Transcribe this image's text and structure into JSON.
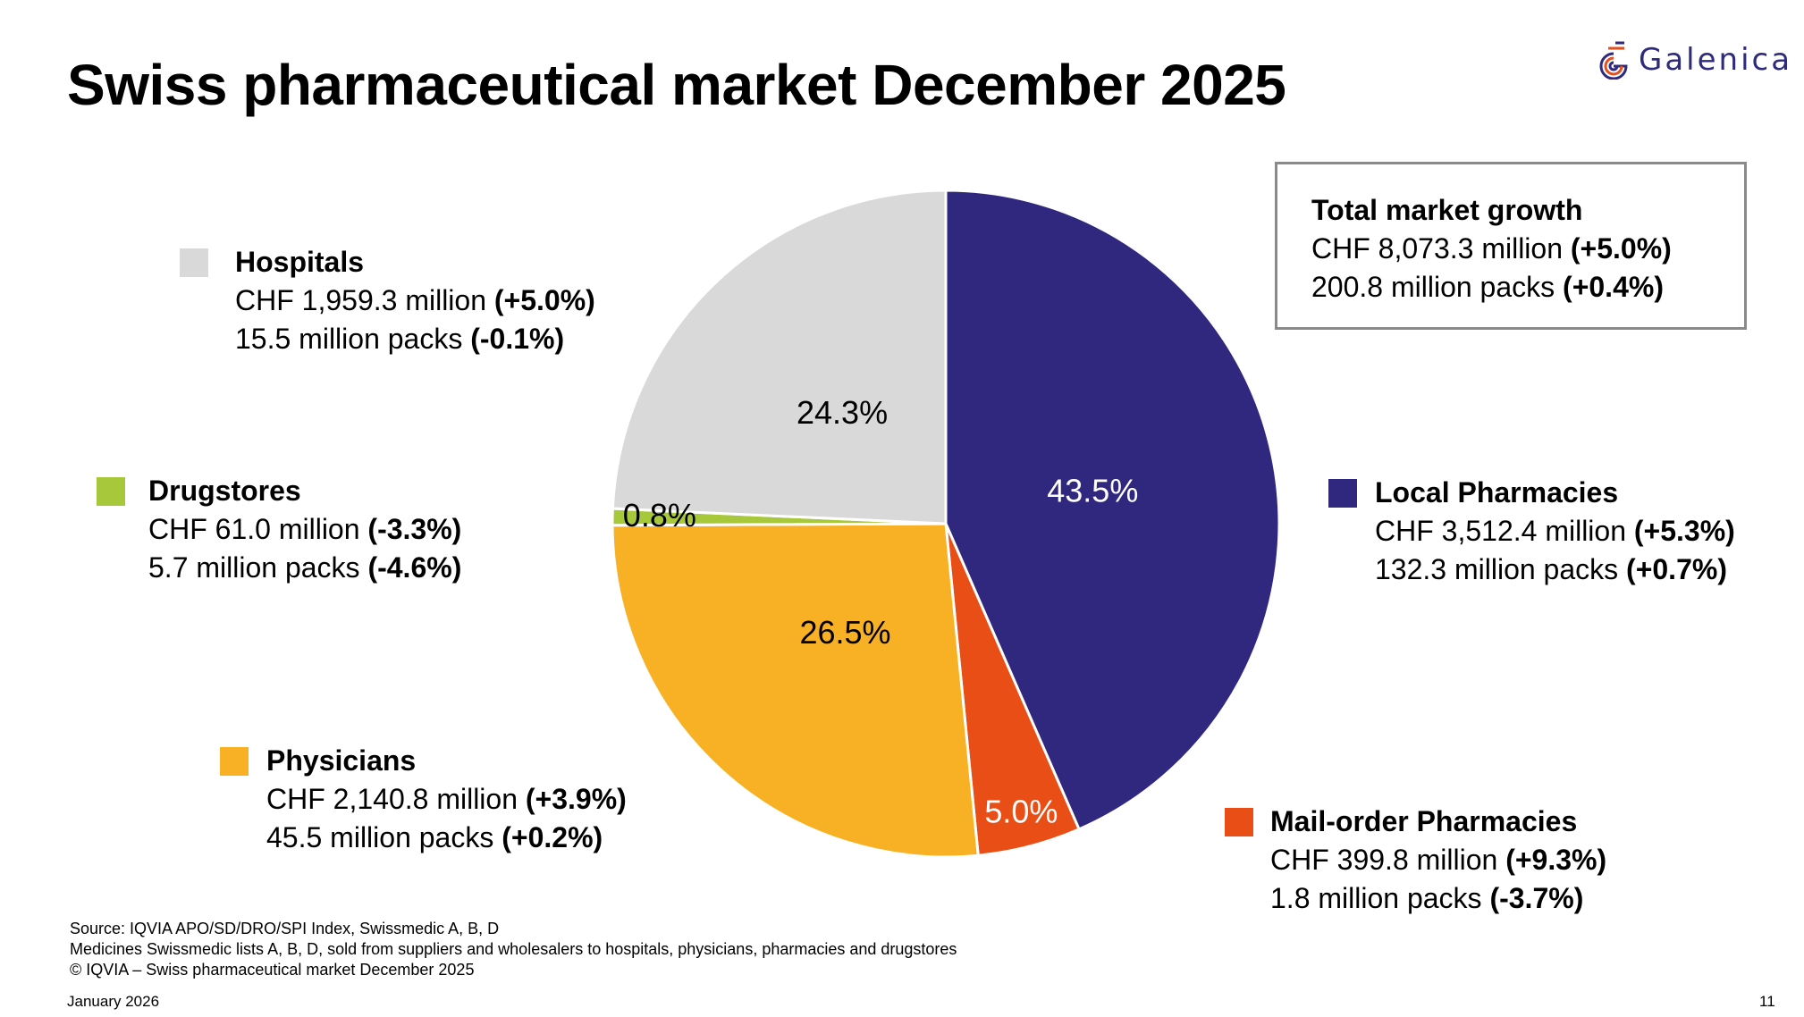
{
  "title": "Swiss pharmaceutical market December 2025",
  "logo": {
    "text": "Galenica",
    "icon": "galenica-logo-icon",
    "colors": {
      "primary": "#2e2a7d",
      "accent": "#e84e1b"
    }
  },
  "total": {
    "label": "Total market growth",
    "value_text": "CHF 8,073.3 million",
    "value_growth": "(+5.0%)",
    "packs_text": "200.8 million packs",
    "packs_growth": "(+0.4%)"
  },
  "chart_data": {
    "type": "pie",
    "title": "Swiss pharmaceutical market December 2025",
    "start": "12 o'clock, clockwise",
    "slices": [
      {
        "name": "Local Pharmacies",
        "percent": 43.5,
        "label": "43.5%",
        "color": "#30287e",
        "label_color": "#ffffff",
        "value_text": "CHF 3,512.4 million",
        "value_growth": "(+5.3%)",
        "packs_text": "132.3 million packs",
        "packs_growth": "(+0.7%)"
      },
      {
        "name": "Mail-order Pharmacies",
        "percent": 5.0,
        "label": "5.0%",
        "color": "#e84e16",
        "label_color": "#ffffff",
        "value_text": "CHF 399.8 million",
        "value_growth": "(+9.3%)",
        "packs_text": "1.8 million packs",
        "packs_growth": "(-3.7%)"
      },
      {
        "name": "Physicians",
        "percent": 26.5,
        "label": "26.5%",
        "color": "#f8b024",
        "label_color": "#000000",
        "value_text": "CHF 2,140.8 million",
        "value_growth": "(+3.9%)",
        "packs_text": "45.5 million packs",
        "packs_growth": "(+0.2%)"
      },
      {
        "name": "Drugstores",
        "percent": 0.8,
        "label": "0.8%",
        "color": "#a8c83c",
        "label_color": "#000000",
        "value_text": "CHF 61.0 million",
        "value_growth": "(-3.3%)",
        "packs_text": "5.7 million packs",
        "packs_growth": "(-4.6%)"
      },
      {
        "name": "Hospitals",
        "percent": 24.3,
        "label": "24.3%",
        "color": "#d9d9d9",
        "label_color": "#000000",
        "value_text": "CHF 1,959.3 million",
        "value_growth": "(+5.0%)",
        "packs_text": "15.5 million packs",
        "packs_growth": "(-0.1%)"
      }
    ]
  },
  "footer": {
    "source": "Source: IQVIA APO/SD/DRO/SPI Index, Swissmedic A, B, D",
    "note": "Medicines Swissmedic lists A, B, D, sold from suppliers and wholesalers to hospitals, physicians, pharmacies and drugstores",
    "copyright": "© IQVIA – Swiss pharmaceutical market December 2025",
    "date": "January 2026",
    "page": "11"
  }
}
